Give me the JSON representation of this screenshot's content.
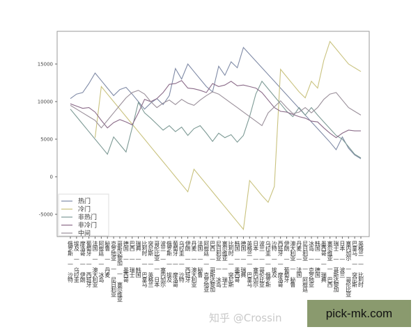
{
  "chart_data": {
    "type": "line",
    "title": "",
    "xlabel": "",
    "ylabel": "",
    "ylim": [
      -7500,
      19000
    ],
    "yticks": [
      -5000,
      0,
      5000,
      10000,
      15000
    ],
    "legend_position": "lower-left",
    "grid": false,
    "categories": [
      "俄罗斯 — 沙特",
      "埃及 — 乌拉圭",
      "摩洛哥 — 伊朗",
      "葡萄牙 — 西班牙",
      "法国 — 澳大利亚",
      "阿根廷 — 冰岛",
      "秘鲁 — 丹麦",
      "克罗地亚 — 尼日利亚",
      "哥斯达黎加 — 塞尔维亚",
      "德国 — 墨西哥",
      "巴西 — 瑞士",
      "瑞典 — 韩国",
      "比利时 — 巴拿马",
      "突尼斯 — 英格兰",
      "哥伦比亚 — 日本",
      "波兰 — 塞内加尔",
      "俄罗斯 — 埃及",
      "葡萄牙 — 摩洛哥",
      "乌拉圭 — 沙特",
      "伊朗 — 西班牙",
      "丹麦 — 澳大利亚",
      "法国 — 秘鲁",
      "阿根廷 — 克罗地亚",
      "巴西 — 哥斯达黎加",
      "尼日利亚 — 冰岛",
      "塞尔维亚 — 瑞士",
      "比利时 — 突尼斯",
      "韩国 — 墨西哥",
      "德国 — 瑞典",
      "英格兰 — 巴拿马",
      "日本 — 塞内加尔",
      "波兰 — 哥伦比亚",
      "乌拉圭 — 俄罗斯",
      "沙特 — 埃及",
      "西班牙 — 摩洛哥",
      "伊朗 — 葡萄牙",
      "澳大利亚 — 秘鲁",
      "丹麦 — 法国",
      "尼日利亚 — 阿根廷",
      "冰岛 — 克罗地亚",
      "韩国 — 德国",
      "墨西哥 — 瑞典",
      "塞尔维亚 — 巴西",
      "瑞士 — 哥斯达黎加",
      "日本 — 波兰",
      "塞内加尔 — 哥伦比亚",
      "巴拿马 — 突尼斯",
      "英格兰 — 比利时"
    ],
    "series": [
      {
        "name": "热门",
        "color": "#7f8aa6",
        "values": [
          10400,
          11000,
          11200,
          12400,
          13800,
          12800,
          11800,
          10800,
          11600,
          11900,
          11000,
          10000,
          9000,
          9800,
          10400,
          9600,
          10800,
          14400,
          13000,
          15000,
          14000,
          13000,
          12000,
          11300,
          14700,
          13500,
          15300,
          14500,
          17200,
          16300,
          15400,
          14500,
          13600,
          12700,
          11800,
          10900,
          10000,
          9100,
          8200,
          7300,
          6400,
          5500,
          4600,
          3600,
          5300,
          3800,
          2900,
          2400
        ]
      },
      {
        "name": "冷门",
        "color": "#c9c27e",
        "values": [
          null,
          null,
          null,
          null,
          5200,
          12000,
          11000,
          10000,
          9000,
          8000,
          7000,
          6000,
          5000,
          4000,
          3000,
          2000,
          1000,
          0,
          -1000,
          -2000,
          1000,
          0,
          -1000,
          -2000,
          -3000,
          -4000,
          -5000,
          -6000,
          -7000,
          -500,
          -1500,
          -2500,
          -3400,
          -1300,
          14300,
          13300,
          12300,
          11300,
          10500,
          12700,
          11800,
          15500,
          18000,
          17000,
          16000,
          15000,
          14500,
          14000
        ]
      },
      {
        "name": "非热门",
        "color": "#7d9a95",
        "values": [
          9000,
          8000,
          7000,
          6000,
          5000,
          4000,
          3000,
          5300,
          4300,
          3300,
          6500,
          9900,
          8500,
          7800,
          7000,
          6200,
          6800,
          6000,
          6600,
          5500,
          6400,
          6800,
          5800,
          4700,
          5800,
          5200,
          5600,
          4600,
          5500,
          8000,
          11000,
          12700,
          11700,
          10700,
          9700,
          8700,
          8000,
          9200,
          8200,
          9200,
          8200,
          7300,
          6400,
          5500,
          5000,
          4000,
          3000,
          2500
        ]
      },
      {
        "name": "非冷门",
        "color": "#8a6a88",
        "values": [
          9700,
          9400,
          9100,
          9200,
          8600,
          7500,
          6500,
          7200,
          7600,
          7300,
          6900,
          8500,
          10300,
          10000,
          10400,
          11200,
          12300,
          12400,
          12800,
          11800,
          11700,
          11500,
          11200,
          12400,
          12000,
          12200,
          12700,
          12100,
          12200,
          12000,
          11800,
          11200,
          10200,
          9200,
          8700,
          8600,
          8300,
          8000,
          7800,
          7400,
          7300,
          6500,
          5800,
          5200,
          5800,
          6200,
          6100,
          6100
        ]
      },
      {
        "name": "中间",
        "color": "#9a8f9a",
        "values": [
          9500,
          9000,
          8500,
          8000,
          7500,
          6500,
          7500,
          8500,
          9500,
          10500,
          11200,
          11500,
          11000,
          10000,
          9200,
          9800,
          10200,
          9600,
          10300,
          9800,
          9500,
          10200,
          10800,
          11300,
          11000,
          10400,
          9800,
          9200,
          8600,
          8000,
          7400,
          6800,
          8500,
          9300,
          10100,
          9200,
          8400,
          8600,
          9200,
          8500,
          9200,
          10300,
          11000,
          11200,
          10200,
          9200,
          8700,
          8200
        ]
      }
    ]
  },
  "watermark": "知乎 @Crossin",
  "brand": "pick-mk.com"
}
